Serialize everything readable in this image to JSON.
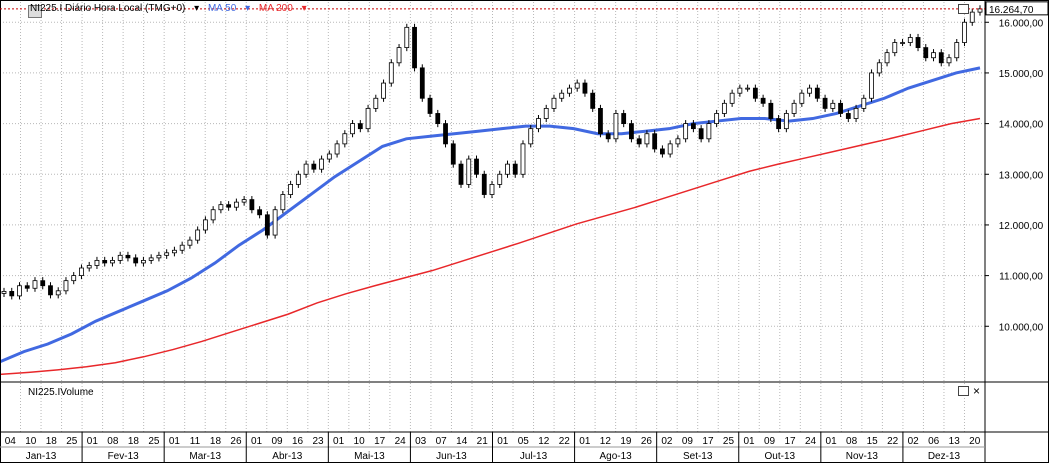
{
  "header": {
    "symbol_title": "NI225.I Diário Hora Local (TMG+0)",
    "ma50_label": "MA 50",
    "ma200_label": "MA 200",
    "last_price": "16.264,70"
  },
  "colors": {
    "ma50": "#4169e1",
    "ma200": "#e8272a",
    "candle_up": "#ffffff",
    "candle_down": "#000000",
    "grid": "#b8b8b8",
    "last_line": "#cc0000"
  },
  "volume_pane": {
    "title": "NI225.IVolume"
  },
  "price_axis": {
    "ticks": [
      "16.000,00",
      "15.000,00",
      "14.000,00",
      "13.000,00",
      "12.000,00",
      "11.000,00",
      "10.000,00"
    ]
  },
  "chart_data": {
    "type": "candlestick",
    "title": "NI225.I Diário Hora Local (TMG+0)",
    "y_range": [
      8900,
      16400
    ],
    "last_value": 16264.7,
    "day_labels": [
      "04",
      "10",
      "18",
      "25",
      "01",
      "08",
      "18",
      "25",
      "01",
      "11",
      "18",
      "26",
      "01",
      "09",
      "16",
      "23",
      "01",
      "10",
      "17",
      "24",
      "03",
      "07",
      "14",
      "21",
      "01",
      "05",
      "12",
      "22",
      "01",
      "12",
      "19",
      "26",
      "02",
      "09",
      "17",
      "25",
      "01",
      "09",
      "17",
      "24",
      "01",
      "08",
      "15",
      "22",
      "02",
      "06",
      "13",
      "20"
    ],
    "month_labels": [
      "Jan-13",
      "Fev-13",
      "Mar-13",
      "Abr-13",
      "Mai-13",
      "Jun-13",
      "Jul-13",
      "Ago-13",
      "Set-13",
      "Out-13",
      "Nov-13",
      "Dez-13"
    ],
    "closes": [
      10688,
      10600,
      10800,
      10750,
      10900,
      10800,
      10620,
      10700,
      10900,
      11000,
      11150,
      11200,
      11300,
      11250,
      11300,
      11400,
      11350,
      11250,
      11300,
      11350,
      11400,
      11450,
      11500,
      11600,
      11700,
      11900,
      12100,
      12300,
      12400,
      12350,
      12450,
      12500,
      12300,
      12200,
      11800,
      12300,
      12600,
      12800,
      13000,
      13200,
      13100,
      13300,
      13400,
      13600,
      13800,
      14000,
      13900,
      14300,
      14500,
      14800,
      15200,
      15500,
      15900,
      15100,
      14500,
      14200,
      14000,
      13600,
      13200,
      12800,
      13300,
      13000,
      12600,
      12800,
      13000,
      13200,
      13000,
      13600,
      13900,
      14100,
      14300,
      14500,
      14600,
      14700,
      14800,
      14600,
      14300,
      13800,
      13700,
      14200,
      14000,
      13700,
      13600,
      13800,
      13500,
      13400,
      13600,
      13700,
      14000,
      13900,
      13700,
      14000,
      14200,
      14400,
      14600,
      14700,
      14700,
      14500,
      14400,
      14100,
      13900,
      14200,
      14400,
      14600,
      14700,
      14500,
      14300,
      14400,
      14200,
      14100,
      14300,
      14500,
      15000,
      15200,
      15400,
      15600,
      15600,
      15700,
      15500,
      15300,
      15400,
      15200,
      15300,
      15600,
      16000,
      16200,
      16264.7
    ],
    "ma50": [
      9300,
      9500,
      9650,
      9850,
      10100,
      10300,
      10500,
      10700,
      10950,
      11250,
      11600,
      11900,
      12250,
      12600,
      12950,
      13250,
      13550,
      13700,
      13750,
      13800,
      13850,
      13900,
      13950,
      13950,
      13900,
      13800,
      13800,
      13850,
      13900,
      14000,
      14050,
      14100,
      14100,
      14050,
      14100,
      14200,
      14350,
      14500,
      14700,
      14850,
      15000,
      15100
    ],
    "ma200": [
      9050,
      9090,
      9140,
      9200,
      9280,
      9400,
      9540,
      9700,
      9880,
      10060,
      10240,
      10460,
      10640,
      10800,
      10950,
      11100,
      11280,
      11460,
      11640,
      11830,
      12020,
      12180,
      12340,
      12520,
      12700,
      12880,
      13060,
      13200,
      13330,
      13460,
      13590,
      13720,
      13860,
      14000,
      14100
    ]
  }
}
